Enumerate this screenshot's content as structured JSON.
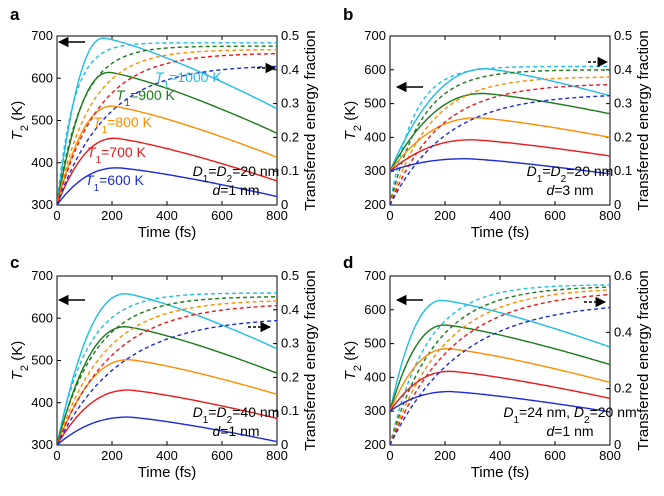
{
  "chart_data": [
    {
      "type": "line",
      "panel": "a",
      "xlabel": "Time (fs)",
      "ylabel": "T2 (K)",
      "ylabel_right": "Transferred energy fraction",
      "xlim": [
        0,
        800
      ],
      "ylim": [
        300,
        700
      ],
      "ylim_right": [
        0,
        0.5
      ],
      "xticks": [
        0,
        200,
        400,
        600,
        800
      ],
      "yticks": [
        300,
        400,
        500,
        600,
        700
      ],
      "yticks_right": [
        0,
        0.1,
        0.2,
        0.3,
        0.4,
        0.5
      ],
      "notes": [
        "D1=D2=20 nm",
        "d=1 nm"
      ],
      "series": [
        {
          "name": "T1=1000 K",
          "color": "#1ebce6",
          "peak_T2": 695,
          "peak_time": 170,
          "end_T2": 528,
          "final_fraction": 0.48
        },
        {
          "name": "T1=900 K",
          "color": "#1a7a1a",
          "peak_T2": 614,
          "peak_time": 190,
          "end_T2": 470,
          "final_fraction": 0.47
        },
        {
          "name": "T1=800 K",
          "color": "#ff8c00",
          "peak_T2": 534,
          "peak_time": 200,
          "end_T2": 413,
          "final_fraction": 0.46
        },
        {
          "name": "T1=700 K",
          "color": "#e8191c",
          "peak_T2": 458,
          "peak_time": 210,
          "end_T2": 357,
          "final_fraction": 0.45
        },
        {
          "name": "T1=600 K",
          "color": "#1c2bd6",
          "peak_T2": 388,
          "peak_time": 220,
          "end_T2": 320,
          "final_fraction": 0.415
        }
      ]
    },
    {
      "type": "line",
      "panel": "b",
      "xlabel": "Time (fs)",
      "ylabel": "T2 (K)",
      "ylabel_right": "Transferred energy fraction",
      "xlim": [
        0,
        800
      ],
      "ylim": [
        200,
        700
      ],
      "ylim_right": [
        0,
        0.5
      ],
      "xticks": [
        0,
        200,
        400,
        600,
        800
      ],
      "yticks": [
        200,
        300,
        400,
        500,
        600,
        700
      ],
      "yticks_right": [
        0,
        0.1,
        0.2,
        0.3,
        0.4,
        0.5
      ],
      "notes": [
        "D1=D2=20 nm",
        "d=3 nm"
      ],
      "series": [
        {
          "name": "T1=1000 K",
          "color": "#1ebce6",
          "peak_T2": 603,
          "peak_time": 350,
          "end_T2": 523,
          "final_fraction": 0.41
        },
        {
          "name": "T1=900 K",
          "color": "#1a7a1a",
          "peak_T2": 530,
          "peak_time": 340,
          "end_T2": 470,
          "final_fraction": 0.4
        },
        {
          "name": "T1=800 K",
          "color": "#ff8c00",
          "peak_T2": 458,
          "peak_time": 320,
          "end_T2": 400,
          "final_fraction": 0.38
        },
        {
          "name": "T1=700 K",
          "color": "#e8191c",
          "peak_T2": 393,
          "peak_time": 300,
          "end_T2": 345,
          "final_fraction": 0.36
        },
        {
          "name": "T1=600 K",
          "color": "#1c2bd6",
          "peak_T2": 337,
          "peak_time": 280,
          "end_T2": 292,
          "final_fraction": 0.33
        }
      ]
    },
    {
      "type": "line",
      "panel": "c",
      "xlabel": "Time (fs)",
      "ylabel": "T2 (K)",
      "ylabel_right": "Transferred energy fraction",
      "xlim": [
        0,
        800
      ],
      "ylim": [
        300,
        700
      ],
      "ylim_right": [
        0,
        0.5
      ],
      "xticks": [
        0,
        200,
        400,
        600,
        800
      ],
      "yticks": [
        300,
        400,
        500,
        600,
        700
      ],
      "yticks_right": [
        0,
        0.1,
        0.2,
        0.3,
        0.4,
        0.5
      ],
      "notes": [
        "D1=D2=40 nm",
        "d=1 nm"
      ],
      "series": [
        {
          "name": "T1=1000 K",
          "color": "#1ebce6",
          "peak_T2": 658,
          "peak_time": 250,
          "end_T2": 528,
          "final_fraction": 0.45
        },
        {
          "name": "T1=900 K",
          "color": "#1a7a1a",
          "peak_T2": 580,
          "peak_time": 250,
          "end_T2": 470,
          "final_fraction": 0.44
        },
        {
          "name": "T1=800 K",
          "color": "#ff8c00",
          "peak_T2": 502,
          "peak_time": 260,
          "end_T2": 420,
          "final_fraction": 0.43
        },
        {
          "name": "T1=700 K",
          "color": "#e8191c",
          "peak_T2": 430,
          "peak_time": 260,
          "end_T2": 363,
          "final_fraction": 0.42
        },
        {
          "name": "T1=600 K",
          "color": "#1c2bd6",
          "peak_T2": 366,
          "peak_time": 260,
          "end_T2": 308,
          "final_fraction": 0.38
        }
      ]
    },
    {
      "type": "line",
      "panel": "d",
      "xlabel": "Time (fs)",
      "ylabel": "T2 (K)",
      "ylabel_right": "Transferred energy fraction",
      "xlim": [
        0,
        800
      ],
      "ylim": [
        200,
        700
      ],
      "ylim_right": [
        0,
        0.6
      ],
      "xticks": [
        0,
        200,
        400,
        600,
        800
      ],
      "yticks": [
        200,
        300,
        400,
        500,
        600,
        700
      ],
      "yticks_right": [
        0,
        0.2,
        0.4,
        0.6
      ],
      "notes": [
        "D1=24 nm, D2=20 nm",
        "d=1 nm"
      ],
      "series": [
        {
          "name": "T1=1000 K",
          "color": "#1ebce6",
          "peak_T2": 628,
          "peak_time": 190,
          "end_T2": 490,
          "final_fraction": 0.57
        },
        {
          "name": "T1=900 K",
          "color": "#1a7a1a",
          "peak_T2": 555,
          "peak_time": 200,
          "end_T2": 438,
          "final_fraction": 0.565
        },
        {
          "name": "T1=800 K",
          "color": "#ff8c00",
          "peak_T2": 485,
          "peak_time": 210,
          "end_T2": 385,
          "final_fraction": 0.56
        },
        {
          "name": "T1=700 K",
          "color": "#e8191c",
          "peak_T2": 418,
          "peak_time": 220,
          "end_T2": 338,
          "final_fraction": 0.55
        },
        {
          "name": "T1=600 K",
          "color": "#1c2bd6",
          "peak_T2": 358,
          "peak_time": 220,
          "end_T2": 298,
          "final_fraction": 0.51
        }
      ]
    }
  ]
}
